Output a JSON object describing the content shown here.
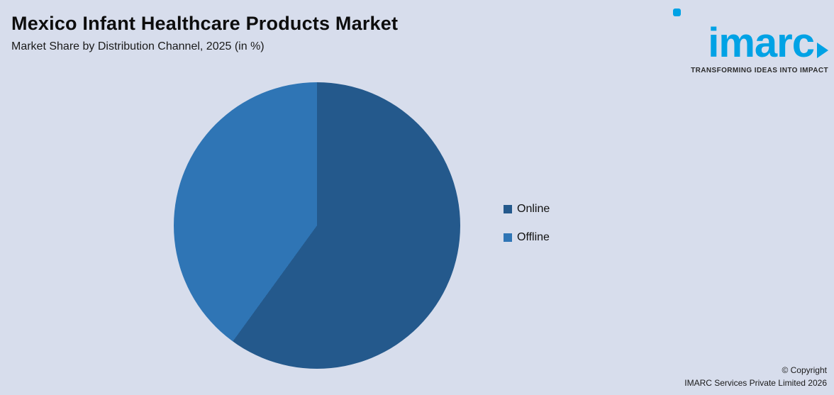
{
  "header": {
    "title": "Mexico Infant Healthcare Products Market",
    "subtitle": "Market Share by Distribution Channel, 2025 (in %)"
  },
  "logo": {
    "text": "imarc",
    "tagline": "TRANSFORMING IDEAS INTO IMPACT",
    "brand_color": "#00a2e5"
  },
  "colors": {
    "background": "#d7ddec",
    "online_slice": "#24598c",
    "offline_slice": "#2f75b5"
  },
  "chart_data": {
    "type": "pie",
    "title": "Market Share by Distribution Channel, 2025 (in %)",
    "series": [
      {
        "name": "Online",
        "value": 60,
        "color": "#24598c"
      },
      {
        "name": "Offline",
        "value": 40,
        "color": "#2f75b5"
      }
    ],
    "start_angle_deg": 0,
    "direction": "clockwise",
    "legend_position": "right"
  },
  "footer": {
    "line1": "© Copyright",
    "line2": "IMARC Services Private Limited 2026"
  }
}
